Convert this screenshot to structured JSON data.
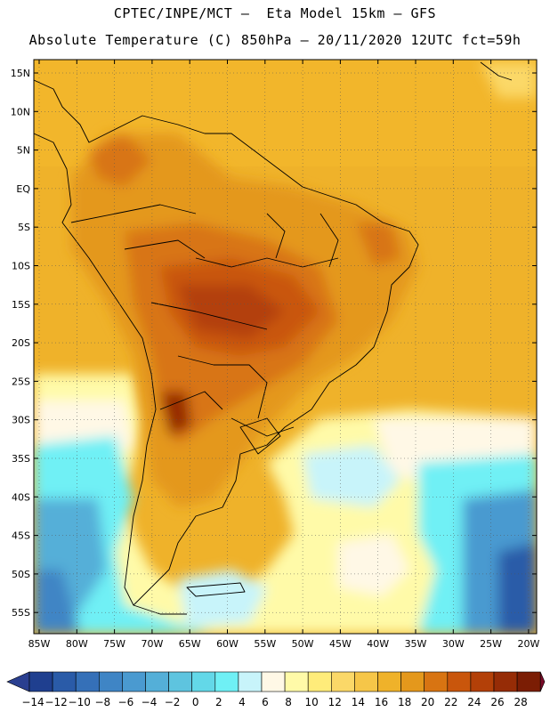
{
  "header": {
    "line1": "CPTEC/INPE/MCT —  Eta Model 15km — GFS",
    "line2": "Absolute Temperature (C) 850hPa — 20/11/2020 12UTC fct=59h"
  },
  "map": {
    "lat_labels": [
      "15N",
      "10N",
      "5N",
      "EQ",
      "5S",
      "10S",
      "15S",
      "20S",
      "25S",
      "30S",
      "35S",
      "40S",
      "45S",
      "50S",
      "55S"
    ],
    "lon_labels": [
      "85W",
      "80W",
      "75W",
      "70W",
      "65W",
      "60W",
      "55W",
      "50W",
      "45W",
      "40W",
      "35W",
      "30W",
      "25W",
      "20W"
    ]
  },
  "colorbar": {
    "labels": [
      "-14",
      "-12",
      "-10",
      "-8",
      "-6",
      "-4",
      "-2",
      "0",
      "2",
      "4",
      "6",
      "8",
      "10",
      "12",
      "14",
      "16",
      "18",
      "20",
      "22",
      "24",
      "26",
      "28"
    ],
    "colors": [
      "#1f3f8f",
      "#2a5ba8",
      "#3570b8",
      "#3f85c5",
      "#4a9ad0",
      "#54afd8",
      "#5ec4df",
      "#63d8e8",
      "#6ff0f5",
      "#c8f4fa",
      "#fff8e6",
      "#fffaa8",
      "#ffec7a",
      "#fbd868",
      "#f6c648",
      "#efb22a",
      "#e4981c",
      "#d87412",
      "#c9560c",
      "#b34008",
      "#962c06",
      "#7b1d04"
    ],
    "under_color": "#2a3f90",
    "over_color": "#7a0a28"
  }
}
